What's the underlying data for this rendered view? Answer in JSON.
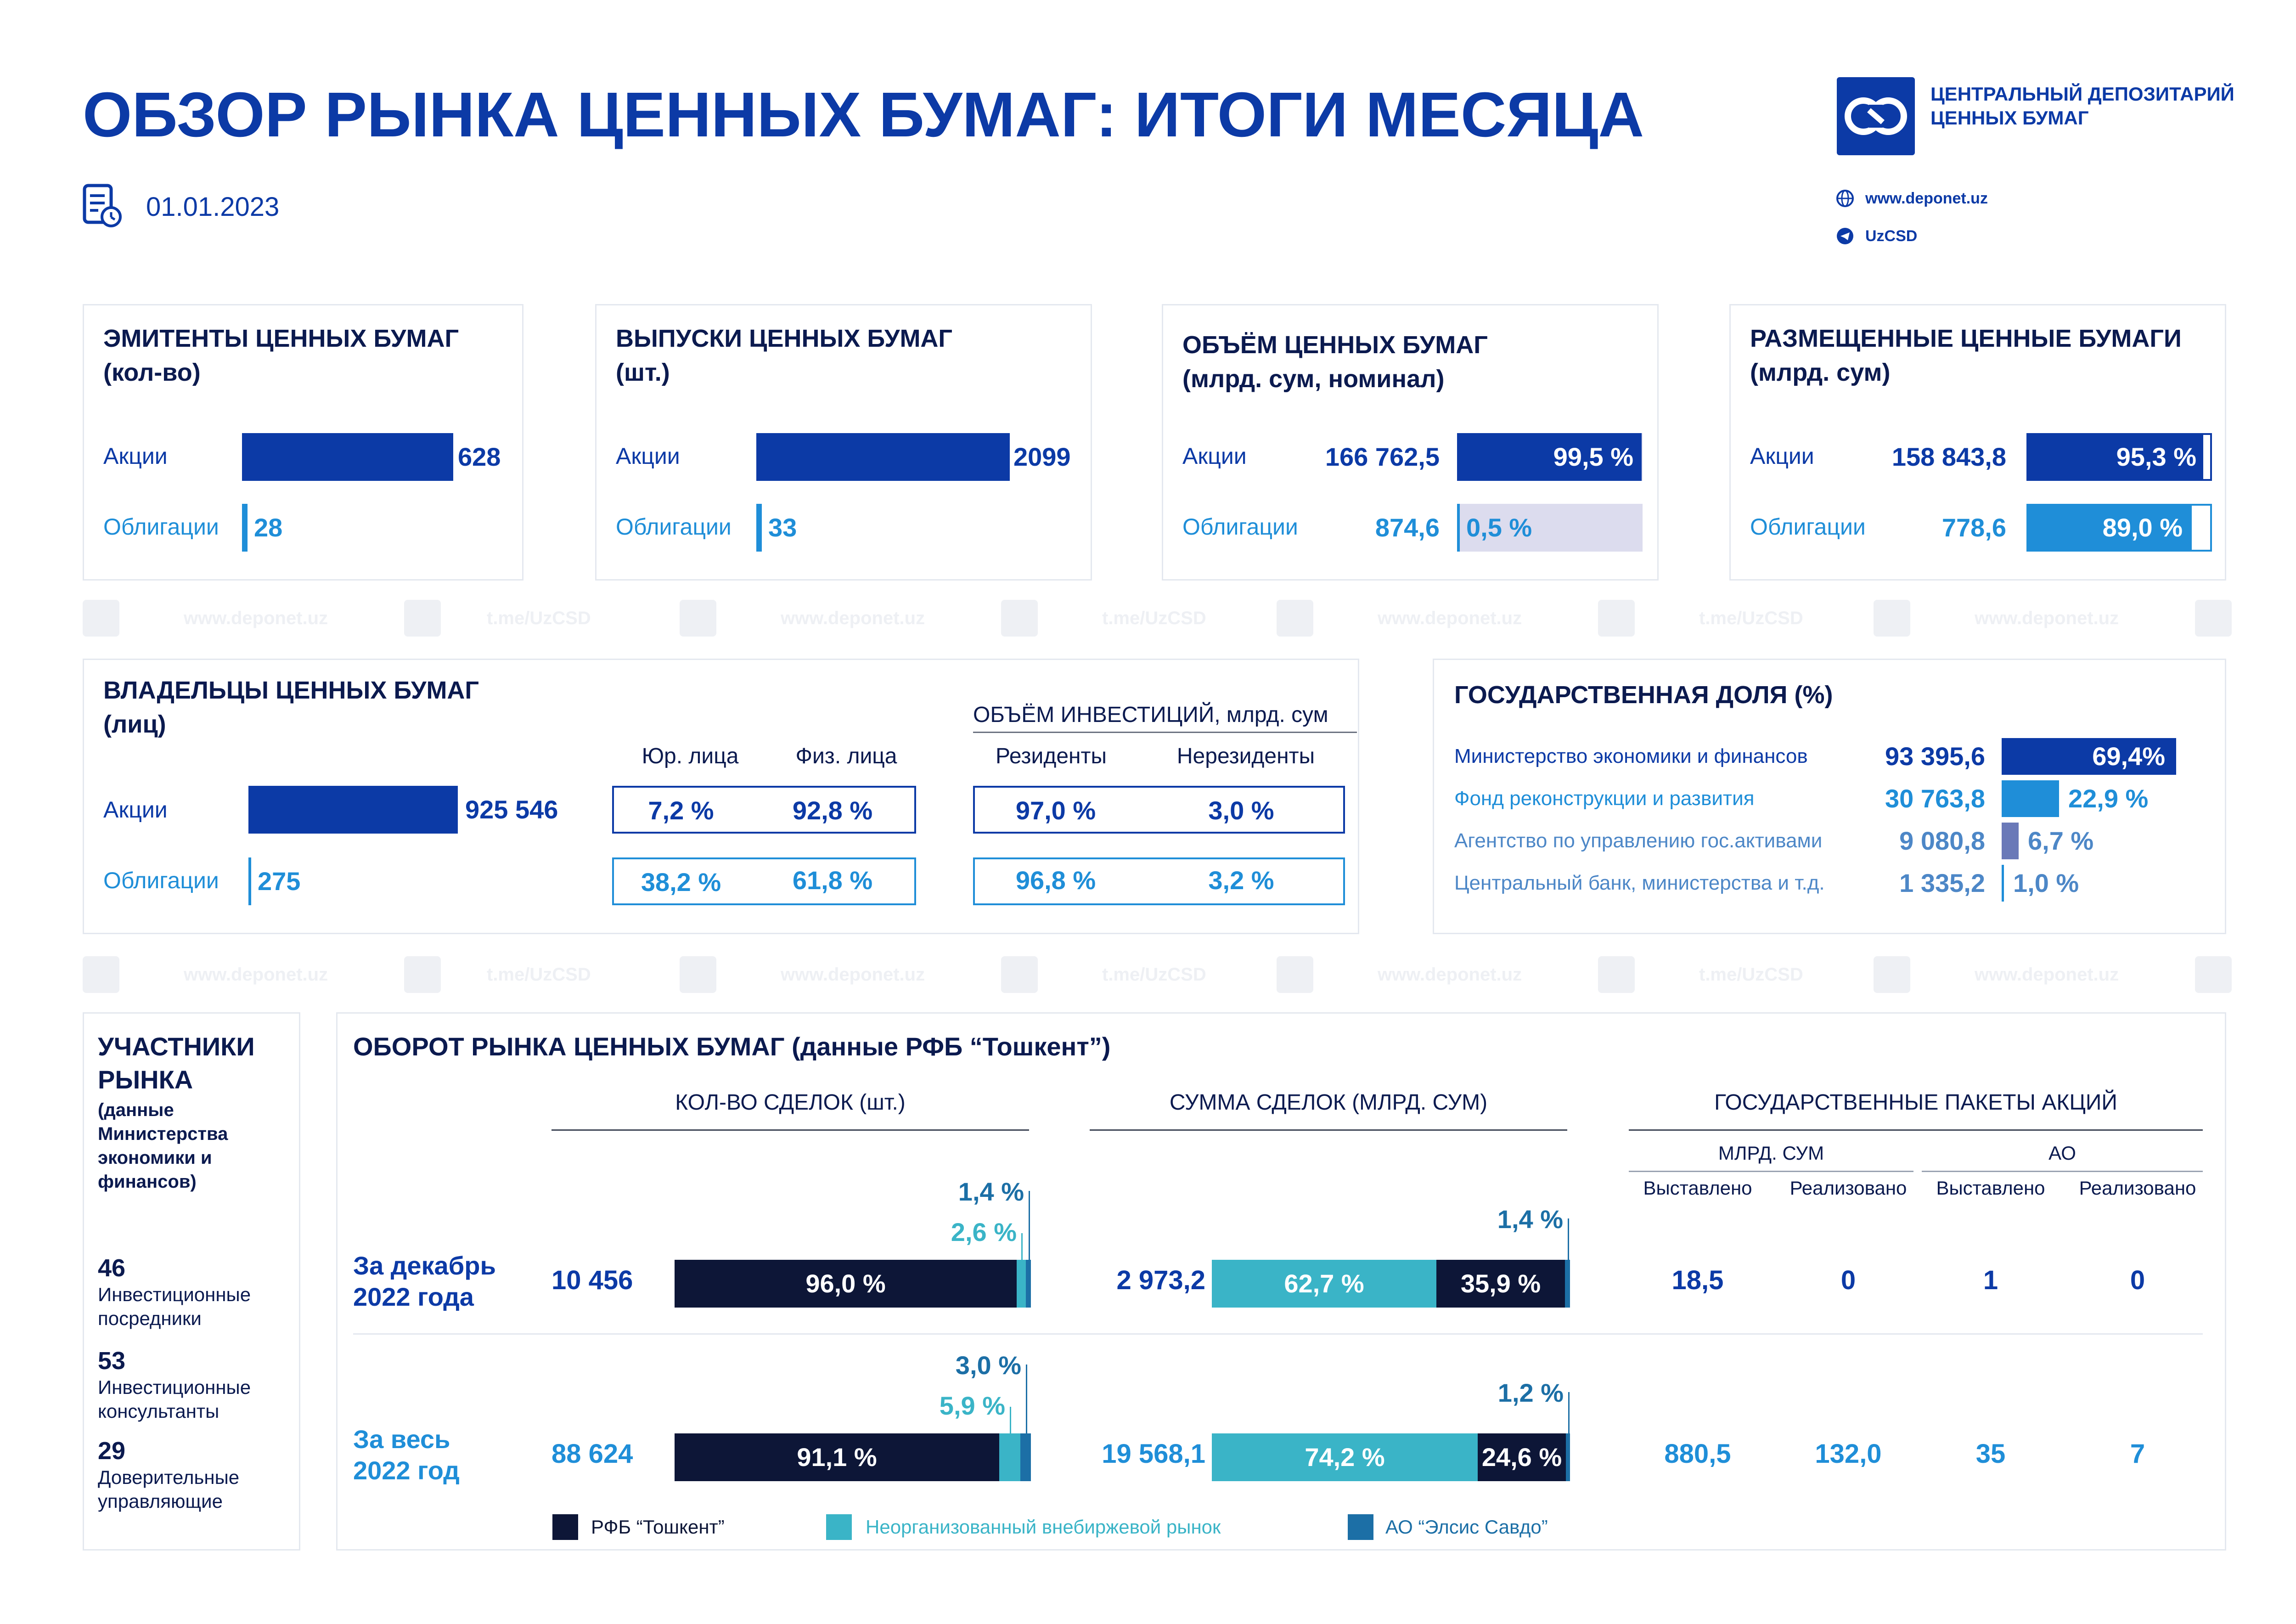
{
  "header": {
    "title": "ОБЗОР РЫНКА ЦЕННЫХ БУМАГ: ИТОГИ МЕСЯЦА",
    "date": "01.01.2023",
    "logo_line1": "ЦЕНТРАЛЬНЫЙ ДЕПОЗИТАРИЙ",
    "logo_line2": "ЦЕННЫХ БУМАГ",
    "website": "www.deponet.uz",
    "telegram": "UzCSD"
  },
  "watermark": {
    "site": "www.deponet.uz",
    "tg": "t.me/UzCSD"
  },
  "issuers": {
    "title1": "ЭМИТЕНТЫ ЦЕННЫХ БУМАГ",
    "title2": "(кол-во)",
    "shares_label": "Акции",
    "shares_value": "628",
    "bonds_label": "Облигации",
    "bonds_value": "28"
  },
  "issues": {
    "title1": "ВЫПУСКИ ЦЕННЫХ БУМАГ",
    "title2": "(шт.)",
    "shares_label": "Акции",
    "shares_value": "2099",
    "bonds_label": "Облигации",
    "bonds_value": "33"
  },
  "volume": {
    "title1": "ОБЪЁМ ЦЕННЫХ БУМАГ",
    "title2": "(млрд. сум, номинал)",
    "shares_label": "Акции",
    "shares_value": "166 762,5",
    "shares_pct": "99,5 %",
    "bonds_label": "Облигации",
    "bonds_value": "874,6",
    "bonds_pct": "0,5 %"
  },
  "placed": {
    "title1": "РАЗМЕЩЕННЫЕ ЦЕННЫЕ БУМАГИ",
    "title2": "(млрд. сум)",
    "shares_label": "Акции",
    "shares_value": "158 843,8",
    "shares_pct": "95,3 %",
    "bonds_label": "Облигации",
    "bonds_value": "778,6",
    "bonds_pct": "89,0 %"
  },
  "owners": {
    "title1": "ВЛАДЕЛЬЦЫ ЦЕННЫХ БУМАГ",
    "title2": "(лиц)",
    "shares_label": "Акции",
    "shares_value": "925 546",
    "bonds_label": "Облигации",
    "bonds_value": "275",
    "col_legal": "Юр. лица",
    "col_phys": "Физ. лица",
    "invest_title": "ОБЪЁМ ИНВЕСТИЦИЙ, млрд. сум",
    "col_res": "Резиденты",
    "col_nonres": "Нерезиденты",
    "shares_legal": "7,2 %",
    "shares_phys": "92,8 %",
    "bonds_legal": "38,2 %",
    "bonds_phys": "61,8 %",
    "shares_res": "97,0 %",
    "shares_nonres": "3,0 %",
    "bonds_res": "96,8 %",
    "bonds_nonres": "3,2 %"
  },
  "gov": {
    "title": "ГОСУДАРСТВЕННАЯ ДОЛЯ (%)",
    "rows": [
      {
        "label": "Министерство экономики и финансов",
        "value": "93 395,6",
        "pct": "69,4%"
      },
      {
        "label": "Фонд реконструкции и развития",
        "value": "30 763,8",
        "pct": "22,9 %"
      },
      {
        "label": "Агентство по управлению гос.активами",
        "value": "9 080,8",
        "pct": "6,7 %"
      },
      {
        "label": "Центральный банк, министерства и т.д.",
        "value": "1 335,2",
        "pct": "1,0 %"
      }
    ]
  },
  "participants": {
    "title1": "УЧАСТНИКИ",
    "title2": "РЫНКА",
    "sub": "(данные Министерства экономики и финансов)",
    "items": [
      {
        "num": "46",
        "text": "Инвестиционные посредники"
      },
      {
        "num": "53",
        "text": "Инвестиционные консультанты"
      },
      {
        "num": "29",
        "text": "Доверительные управляющие"
      }
    ]
  },
  "turnover": {
    "title": "ОБОРОТ РЫНКА ЦЕННЫХ БУМАГ (данные РФБ “Тошкент”)",
    "col_deals": "КОЛ-ВО СДЕЛОК (шт.)",
    "col_sum": "СУММА СДЕЛОК (МЛРД. СУМ)",
    "col_state": "ГОСУДАРСТВЕННЫЕ ПАКЕТЫ АКЦИЙ",
    "sub_bln": "МЛРД. СУМ",
    "sub_ao": "АО",
    "h_set": "Выставлено",
    "h_sold": "Реализовано",
    "rows": [
      {
        "label1": "За декабрь",
        "label2": "2022 года",
        "deals": "10 456",
        "deals_pct_main": "96,0 %",
        "deals_pct_mid": "2,6 %",
        "deals_pct_top": "1,4 %",
        "sum": "2 973,2",
        "sum_pct_otc": "62,7 %",
        "sum_pct_main": "35,9 %",
        "sum_pct_top": "1,4 %",
        "bln_set": "18,5",
        "bln_sold": "0",
        "ao_set": "1",
        "ao_sold": "0"
      },
      {
        "label1": "За весь",
        "label2": "2022 год",
        "deals": "88 624",
        "deals_pct_main": "91,1 %",
        "deals_pct_mid": "5,9 %",
        "deals_pct_top": "3,0 %",
        "sum": "19 568,1",
        "sum_pct_otc": "74,2 %",
        "sum_pct_main": "24,6 %",
        "sum_pct_top": "1,2 %",
        "bln_set": "880,5",
        "bln_sold": "132,0",
        "ao_set": "35",
        "ao_sold": "7"
      }
    ],
    "legend": [
      "РФБ “Тошкент”",
      "Неорганизованный внебиржевой рынок",
      "АО “Элсис Савдо”"
    ]
  },
  "colors": {
    "navy": "#0b1a4f",
    "blue": "#0c3aa6",
    "cyan": "#1f8ed8",
    "teal": "#3ab4c7",
    "darknavy": "#0d1637",
    "steel": "#1c6fa6",
    "lavender": "#dcdcee",
    "slate": "#6a79b8"
  },
  "chart_data": [
    {
      "type": "bar",
      "title": "ЭМИТЕНТЫ ЦЕННЫХ БУМАГ",
      "categories": [
        "Акции",
        "Облигации"
      ],
      "values": [
        628,
        28
      ]
    },
    {
      "type": "bar",
      "title": "ВЫПУСКИ ЦЕННЫХ БУМАГ",
      "categories": [
        "Акции",
        "Облигации"
      ],
      "values": [
        2099,
        33
      ]
    },
    {
      "type": "bar",
      "title": "ОБЪЁМ ЦЕННЫХ БУМАГ",
      "categories": [
        "Акции",
        "Облигации"
      ],
      "values": [
        166762.5,
        874.6
      ],
      "percent": [
        99.5,
        0.5
      ]
    },
    {
      "type": "bar",
      "title": "РАЗМЕЩЕННЫЕ ЦЕННЫЕ БУМАГИ",
      "categories": [
        "Акции",
        "Облигации"
      ],
      "values": [
        158843.8,
        778.6
      ],
      "percent": [
        95.3,
        89.0
      ]
    },
    {
      "type": "bar",
      "title": "ВЛАДЕЛЬЦЫ ЦЕННЫХ БУМАГ",
      "categories": [
        "Акции",
        "Облигации"
      ],
      "values": [
        925546,
        275
      ]
    },
    {
      "type": "bar",
      "title": "ГОСУДАРСТВЕННАЯ ДОЛЯ (%)",
      "categories": [
        "Министерство экономики и финансов",
        "Фонд реконструкции и развития",
        "Агентство по управлению гос.активами",
        "Центральный банк, министерства и т.д."
      ],
      "values": [
        93395.6,
        30763.8,
        9080.8,
        1335.2
      ],
      "percent": [
        69.4,
        22.9,
        6.7,
        1.0
      ]
    },
    {
      "type": "bar",
      "title": "КОЛ-ВО СДЕЛОК (шт.)",
      "categories": [
        "За декабрь 2022 года",
        "За весь 2022 год"
      ],
      "series": [
        {
          "name": "РФБ “Тошкент”",
          "values": [
            96.0,
            91.1
          ]
        },
        {
          "name": "Неорганизованный внебиржевой рынок",
          "values": [
            2.6,
            5.9
          ]
        },
        {
          "name": "АО “Элсис Савдо”",
          "values": [
            1.4,
            3.0
          ]
        }
      ]
    },
    {
      "type": "bar",
      "title": "СУММА СДЕЛОК (МЛРД. СУМ)",
      "categories": [
        "За декабрь 2022 года",
        "За весь 2022 год"
      ],
      "series": [
        {
          "name": "Неорганизованный внебиржевой рынок",
          "values": [
            62.7,
            74.2
          ]
        },
        {
          "name": "РФБ “Тошкент”",
          "values": [
            35.9,
            24.6
          ]
        },
        {
          "name": "АО “Элсис Савдо”",
          "values": [
            1.4,
            1.2
          ]
        }
      ]
    }
  ]
}
